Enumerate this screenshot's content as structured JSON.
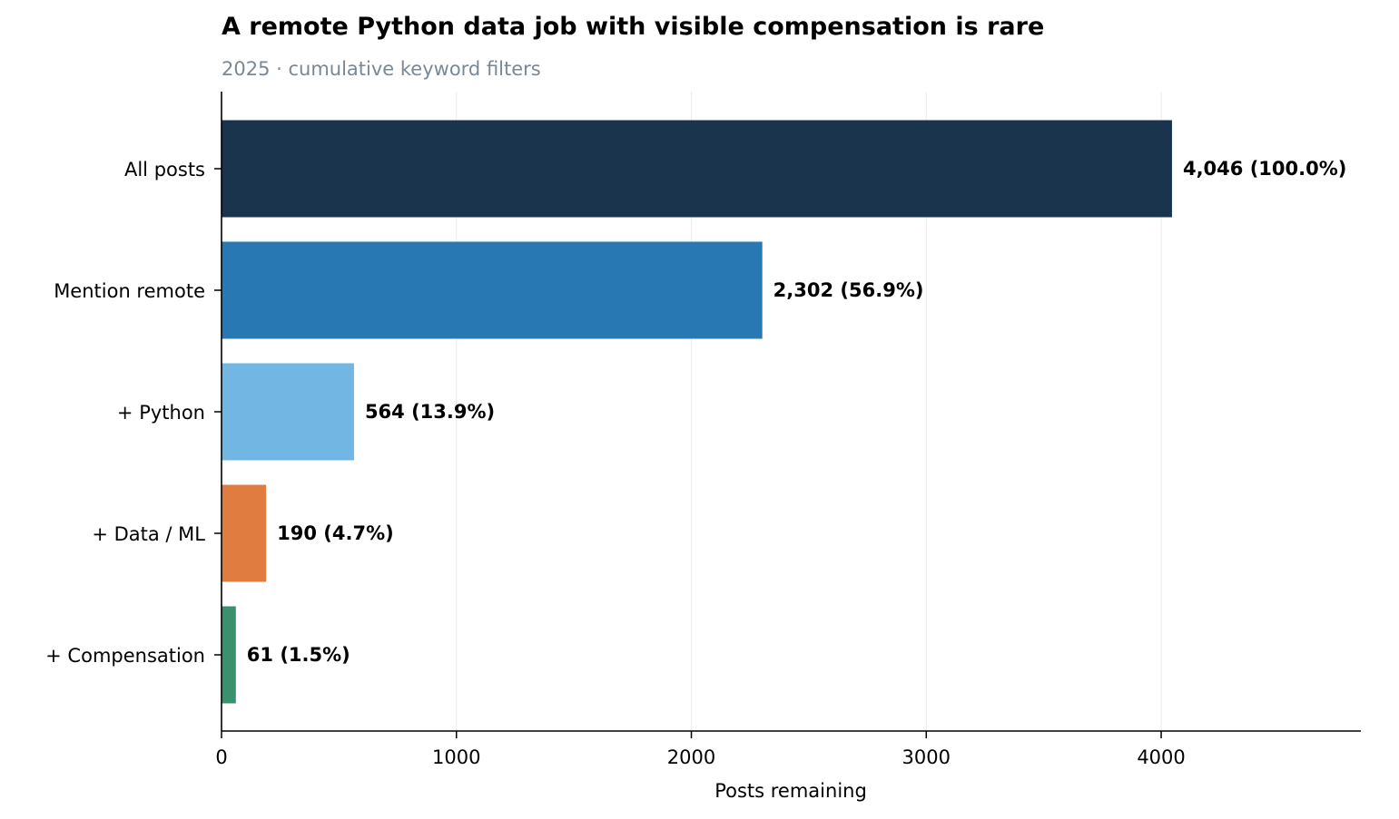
{
  "chart_data": {
    "type": "bar",
    "orientation": "horizontal",
    "title": "A remote Python data job with visible compensation is rare",
    "subtitle": "2025 · cumulative keyword filters",
    "xlabel": "Posts remaining",
    "ylabel": "",
    "xlim": [
      0,
      4850
    ],
    "xticks": [
      0,
      1000,
      2000,
      3000,
      4000
    ],
    "grid": "vertical",
    "categories": [
      "All posts",
      "Mention remote",
      "+ Python",
      "+ Data / ML",
      "+ Compensation"
    ],
    "values": [
      4046,
      2302,
      564,
      190,
      61
    ],
    "percent_labels": [
      "(100.0%)",
      "(56.9%)",
      "(13.9%)",
      "(4.7%)",
      "(1.5%)"
    ],
    "value_labels": [
      "4,046",
      "2,302",
      "564",
      "190",
      "61"
    ],
    "colors": [
      "#1b344d",
      "#2878b4",
      "#72b7e4",
      "#e07c40",
      "#3a916d"
    ]
  }
}
